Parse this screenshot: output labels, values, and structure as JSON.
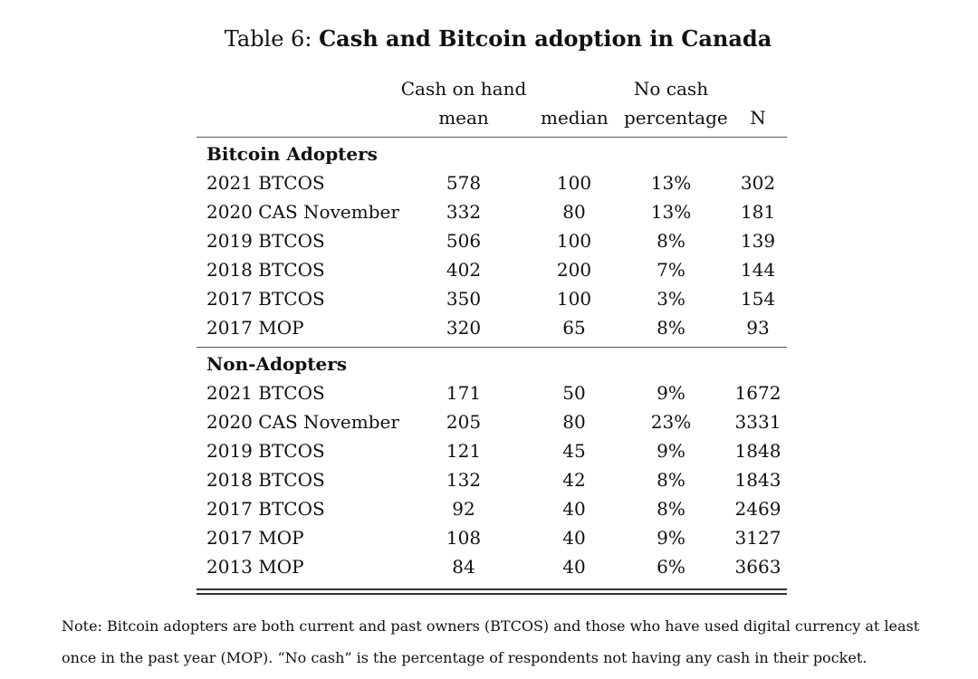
{
  "caption": {
    "label": "Table 6:",
    "title": "Cash and Bitcoin adoption in Canada"
  },
  "header": {
    "cash_on_hand": "Cash on hand",
    "no_cash": "No cash",
    "mean": "mean",
    "median": "median",
    "percentage": "percentage",
    "n": "N"
  },
  "groups": [
    {
      "title": "Bitcoin Adopters",
      "rows": [
        {
          "label": "2021 BTCOS",
          "mean": "578",
          "median": "100",
          "pct": "13%",
          "n": "302"
        },
        {
          "label": "2020 CAS November",
          "mean": "332",
          "median": "80",
          "pct": "13%",
          "n": "181"
        },
        {
          "label": "2019 BTCOS",
          "mean": "506",
          "median": "100",
          "pct": "8%",
          "n": "139"
        },
        {
          "label": "2018 BTCOS",
          "mean": "402",
          "median": "200",
          "pct": "7%",
          "n": "144"
        },
        {
          "label": "2017 BTCOS",
          "mean": "350",
          "median": "100",
          "pct": "3%",
          "n": "154"
        },
        {
          "label": "2017 MOP",
          "mean": "320",
          "median": "65",
          "pct": "8%",
          "n": "93"
        }
      ]
    },
    {
      "title": "Non-Adopters",
      "rows": [
        {
          "label": "2021 BTCOS",
          "mean": "171",
          "median": "50",
          "pct": "9%",
          "n": "1672"
        },
        {
          "label": "2020 CAS November",
          "mean": "205",
          "median": "80",
          "pct": "23%",
          "n": "3331"
        },
        {
          "label": "2019 BTCOS",
          "mean": "121",
          "median": "45",
          "pct": "9%",
          "n": "1848"
        },
        {
          "label": "2018 BTCOS",
          "mean": "132",
          "median": "42",
          "pct": "8%",
          "n": "1843"
        },
        {
          "label": "2017 BTCOS",
          "mean": "92",
          "median": "40",
          "pct": "8%",
          "n": "2469"
        },
        {
          "label": "2017 MOP",
          "mean": "108",
          "median": "40",
          "pct": "9%",
          "n": "3127"
        },
        {
          "label": "2013 MOP",
          "mean": "84",
          "median": "40",
          "pct": "6%",
          "n": "3663"
        }
      ]
    }
  ],
  "note": "Note: Bitcoin adopters are both current and past owners (BTCOS) and those who have used digital currency at least once in the past year (MOP). “No cash” is the percentage of respondents not having any cash in their pocket."
}
